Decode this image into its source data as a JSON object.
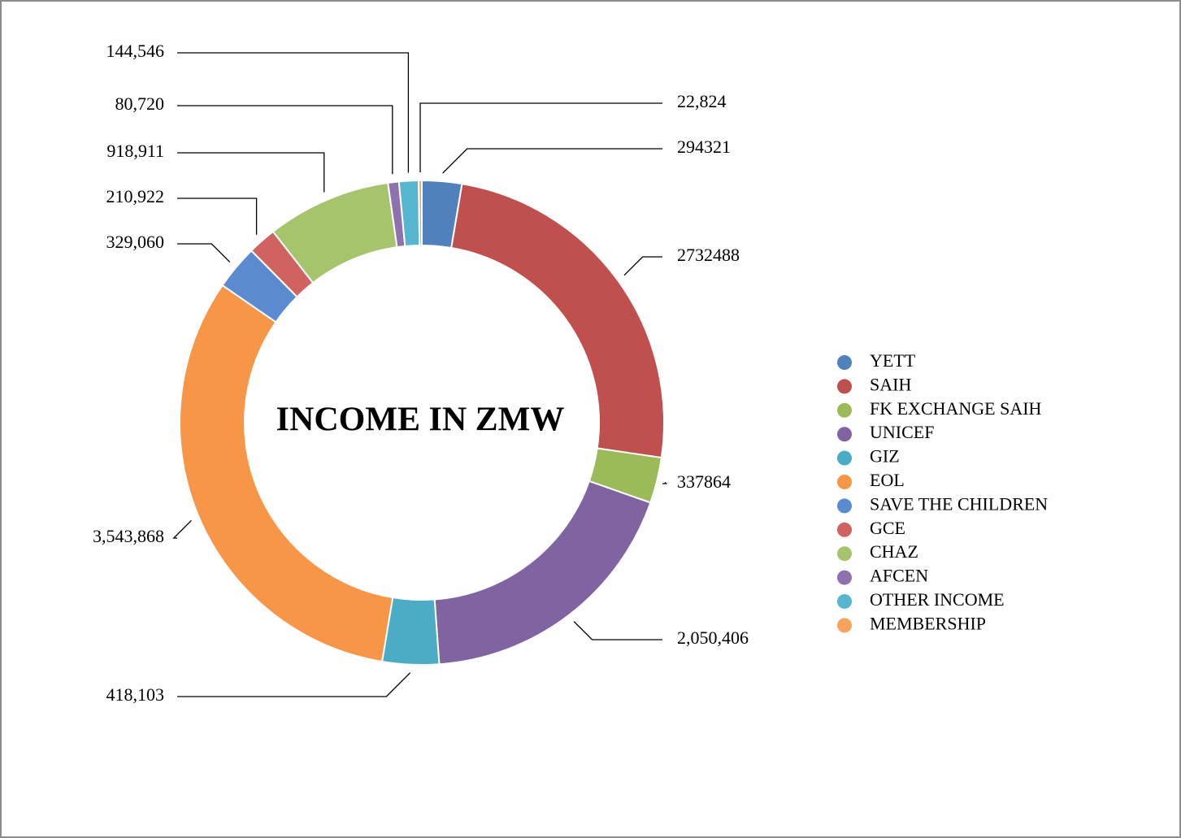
{
  "chart_data": {
    "type": "donut",
    "title": "INCOME IN ZMW",
    "categories": [
      "YETT",
      "SAIH",
      "FK EXCHANGE SAIH",
      "UNICEF",
      "GIZ",
      "EOL",
      "SAVE THE CHILDREN",
      "GCE",
      "CHAZ",
      "AFCEN",
      "OTHER INCOME",
      "MEMBERSHIP"
    ],
    "values": [
      294321,
      2732488,
      337864,
      2050406,
      418103,
      3543868,
      329060,
      210922,
      918911,
      80720,
      144546,
      22824
    ],
    "value_labels": [
      "294321",
      "2732488",
      "337864",
      "2,050,406",
      "418,103",
      "3,543,868",
      "329,060",
      "210,922",
      "918,911",
      "80,720",
      "144,546",
      "22,824"
    ],
    "colors": [
      "#4f81bd",
      "#c0504d",
      "#9bbb59",
      "#8064a2",
      "#4bacc6",
      "#f79646",
      "#5a8ad0",
      "#d0625f",
      "#a6c46b",
      "#8e72b0",
      "#57b6cf",
      "#f9a25c"
    ],
    "legend": "right"
  }
}
